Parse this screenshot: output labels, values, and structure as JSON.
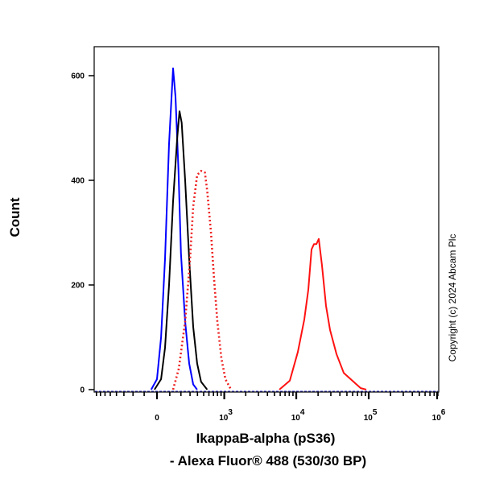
{
  "chart_data": {
    "type": "line",
    "title": "",
    "xlabel_line1": "IkappaB-alpha (pS36)",
    "xlabel_line2": "- Alexa Fluor® 488 (530/30 BP)",
    "ylabel": "Count",
    "x_scale": "logicle",
    "xlim": [
      -860,
      1000000
    ],
    "ylim": [
      0,
      660
    ],
    "x_ticks": [
      {
        "value": 0,
        "base": "0",
        "exp": ""
      },
      {
        "value": 1000,
        "base": "10",
        "exp": "3"
      },
      {
        "value": 10000,
        "base": "10",
        "exp": "4"
      },
      {
        "value": 100000,
        "base": "10",
        "exp": "5"
      },
      {
        "value": 1000000,
        "base": "10",
        "exp": "6"
      }
    ],
    "y_ticks": [
      0,
      200,
      400,
      600
    ],
    "y_tick_labels": [
      "0",
      "200",
      "400",
      "600"
    ],
    "grid": false,
    "series": [
      {
        "color": "#0000ff",
        "style": "solid",
        "x": [
          -44,
          0,
          31,
          62,
          94,
          128,
          149,
          176,
          200,
          244,
          290,
          340,
          395
        ],
        "y": [
          0,
          20,
          100,
          250,
          470,
          614,
          560,
          420,
          260,
          130,
          50,
          10,
          0
        ]
      },
      {
        "color": "#000000",
        "style": "solid",
        "x": [
          -19,
          31,
          62,
          94,
          128,
          164,
          186,
          208,
          244,
          290,
          340,
          395,
          456,
          565
        ],
        "y": [
          0,
          20,
          80,
          200,
          360,
          480,
          532,
          510,
          400,
          250,
          120,
          50,
          15,
          0
        ]
      },
      {
        "color": "#ee2222",
        "style": "dotted",
        "x": [
          128,
          179,
          244,
          300,
          340,
          395,
          456,
          522,
          565,
          643,
          716,
          797,
          910,
          1038,
          1247
        ],
        "y": [
          0,
          40,
          130,
          250,
          350,
          410,
          418,
          415,
          380,
          300,
          210,
          130,
          60,
          20,
          0
        ]
      },
      {
        "color": "#ff1111",
        "style": "solid",
        "x": [
          5840,
          8140,
          10520,
          12900,
          14670,
          16240,
          17540,
          18950,
          20450,
          22650,
          25760,
          29280,
          35910,
          45170,
          58320,
          77300,
          92500
        ],
        "y": [
          0,
          17,
          72,
          134,
          191,
          268,
          278,
          278,
          288,
          237,
          160,
          114,
          68,
          32,
          18,
          3,
          0
        ]
      }
    ]
  },
  "copyright": "Copyright (c) 2024 Abcam Plc"
}
